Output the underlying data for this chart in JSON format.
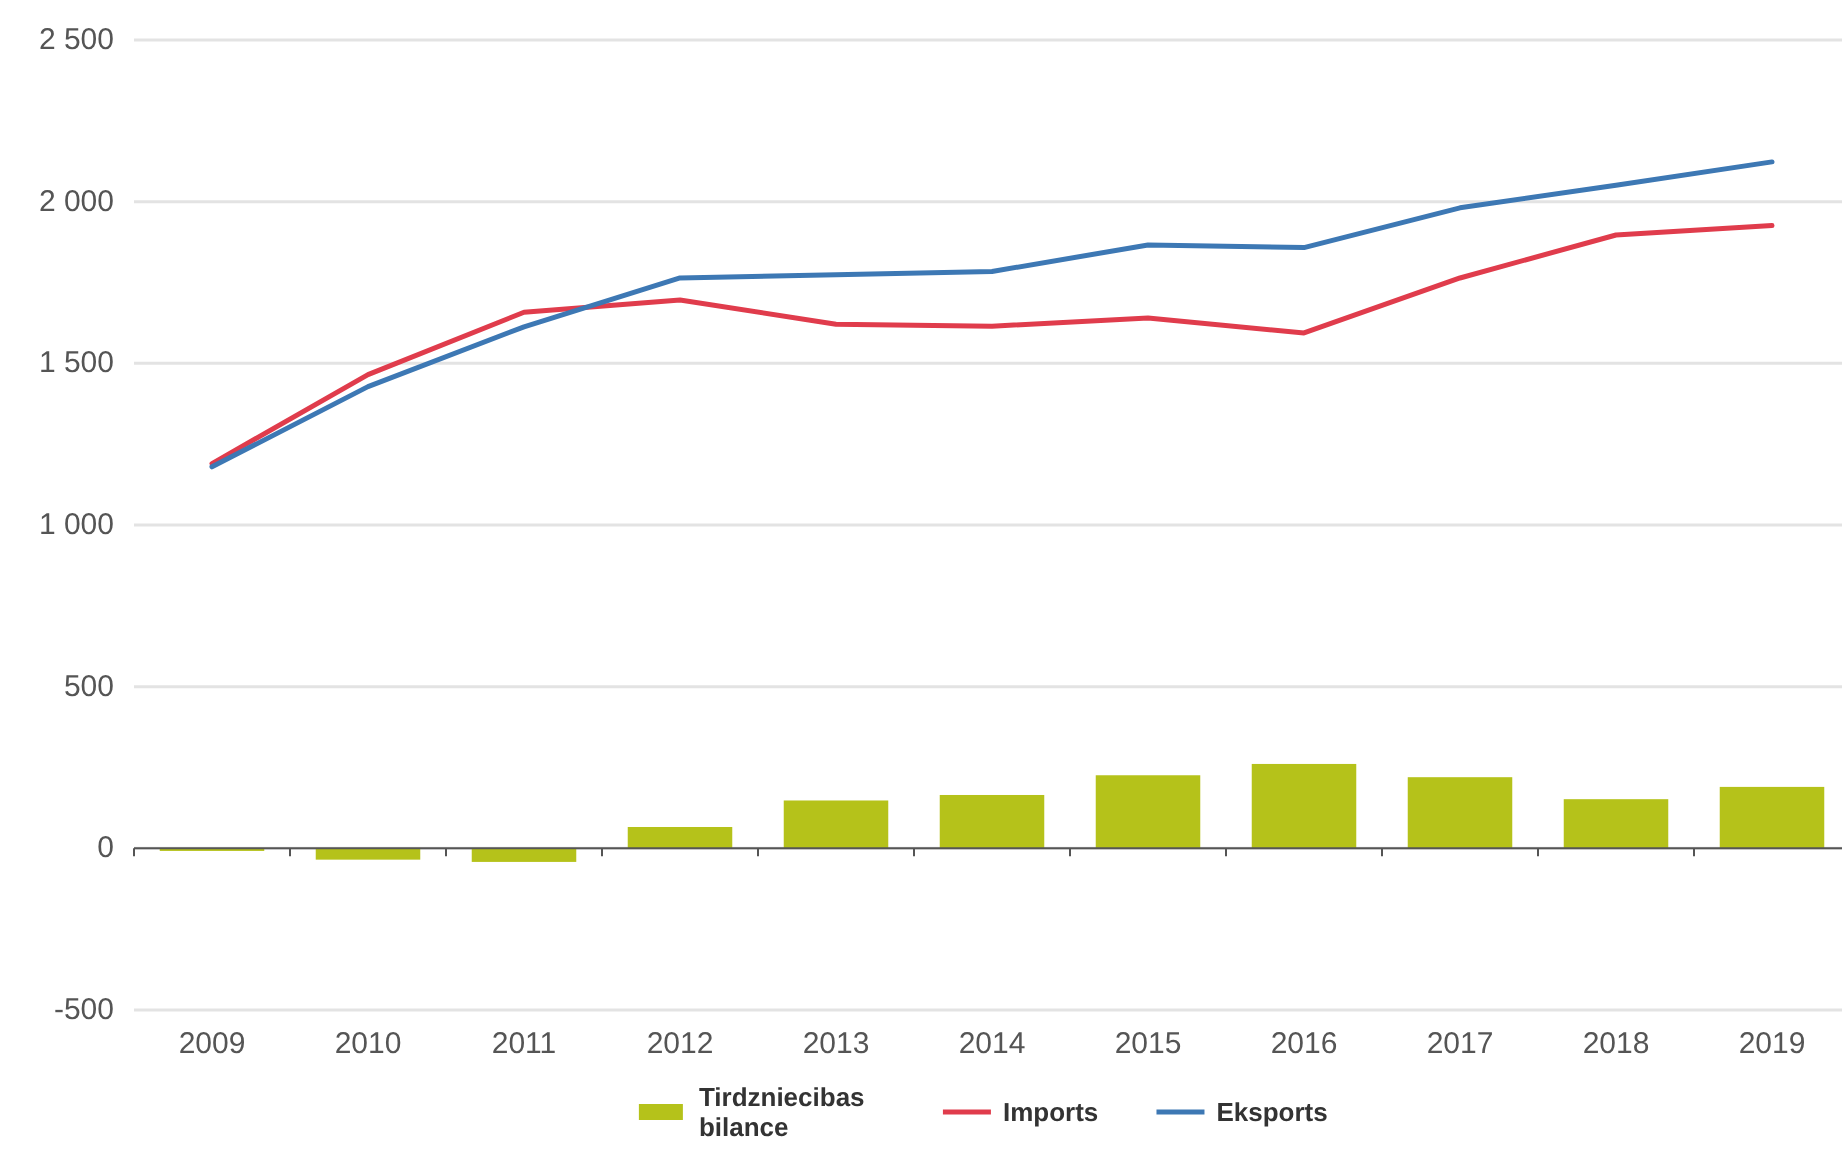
{
  "chart_data": {
    "type": "bar",
    "categories": [
      "2009",
      "2010",
      "2011",
      "2012",
      "2013",
      "2014",
      "2015",
      "2016",
      "2017",
      "2018",
      "2019"
    ],
    "series": [
      {
        "name": "Tirdzniecibas bilance",
        "color": "#b5c21a",
        "values": [
          -8,
          -35,
          -42,
          66,
          148,
          165,
          226,
          261,
          220,
          152,
          190
        ]
      },
      {
        "name": "Imports",
        "type": "line",
        "color": "#e03c4c",
        "values": [
          1190,
          1465,
          1658,
          1696,
          1621,
          1615,
          1640,
          1594,
          1764,
          1897,
          1926
        ]
      },
      {
        "name": "Eksports",
        "type": "line",
        "color": "#3d78b4",
        "values": [
          1180,
          1428,
          1613,
          1764,
          1774,
          1784,
          1866,
          1858,
          1981,
          2051,
          2123
        ]
      }
    ],
    "ylim": [
      -500,
      2500
    ],
    "yticks": [
      {
        "value": -500,
        "label": "-500"
      },
      0,
      500,
      {
        "value": 1000,
        "label": "1 000"
      },
      {
        "value": 1500,
        "label": "1 500"
      },
      {
        "value": 2000,
        "label": "2 000"
      },
      {
        "value": 2500,
        "label": "2 500"
      }
    ],
    "grid": "y",
    "legend": "bottom"
  }
}
